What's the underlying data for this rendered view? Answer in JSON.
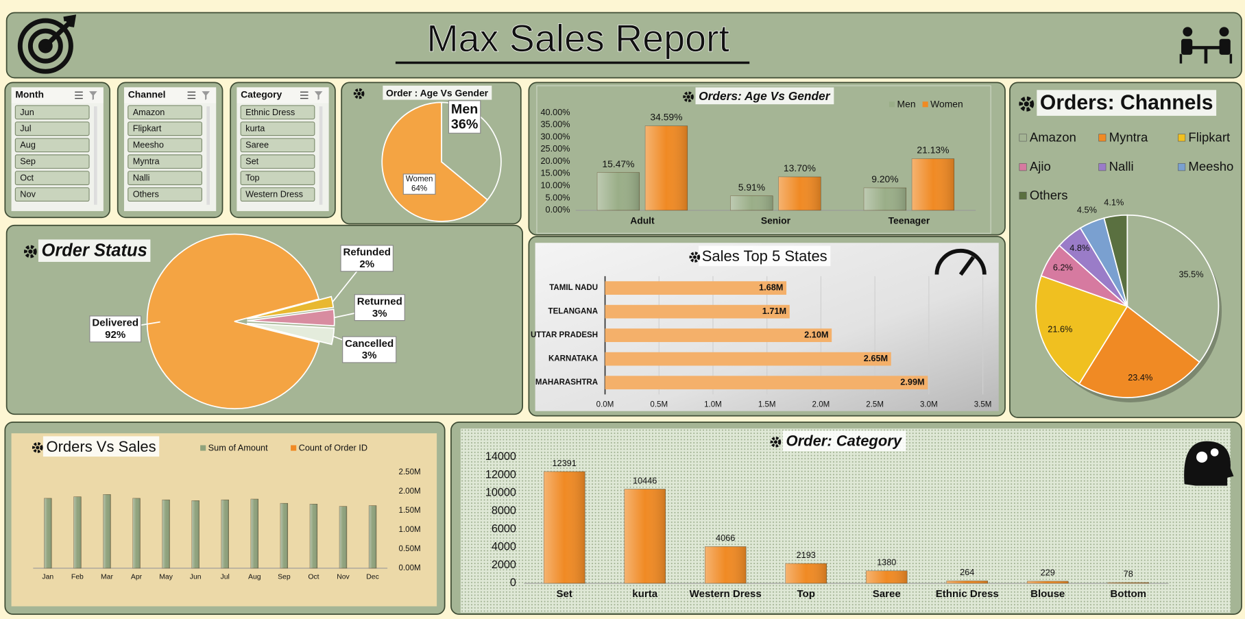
{
  "header": {
    "title": "Max Sales Report"
  },
  "slicers": [
    {
      "title": "Month",
      "items": [
        "Jun",
        "Jul",
        "Aug",
        "Sep",
        "Oct",
        "Nov"
      ]
    },
    {
      "title": "Channel",
      "items": [
        "Amazon",
        "Flipkart",
        "Meesho",
        "Myntra",
        "Nalli",
        "Others"
      ]
    },
    {
      "title": "Category",
      "items": [
        "Ethnic Dress",
        "kurta",
        "Saree",
        "Set",
        "Top",
        "Western Dress"
      ]
    }
  ],
  "chart_data": [
    {
      "type": "pie",
      "title": "Order : Age Vs Gender",
      "categories": [
        "Men",
        "Women"
      ],
      "values": [
        36,
        64
      ],
      "value_labels": [
        "36%",
        "64%"
      ],
      "colors": [
        "#a4b494",
        "#f4a443"
      ]
    },
    {
      "type": "bar",
      "title": "Orders: Age Vs Gender",
      "categories": [
        "Adult",
        "Senior",
        "Teenager"
      ],
      "series": [
        {
          "name": "Men",
          "color": "#9aae88",
          "values": [
            15.47,
            5.91,
            9.2
          ],
          "value_labels": [
            "15.47%",
            "5.91%",
            "9.20%"
          ]
        },
        {
          "name": "Women",
          "color": "#f08a24",
          "values": [
            34.59,
            13.7,
            21.13
          ],
          "value_labels": [
            "34.59%",
            "13.70%",
            "21.13%"
          ]
        }
      ],
      "ylim": [
        0,
        40
      ],
      "yticks": [
        {
          "value": 0,
          "label": "0.00%"
        },
        {
          "value": 5,
          "label": "5.00%"
        },
        {
          "value": 10,
          "label": "10.00%"
        },
        {
          "value": 15,
          "label": "15.00%"
        },
        {
          "value": 20,
          "label": "20.00%"
        },
        {
          "value": 25,
          "label": "25.00%"
        },
        {
          "value": 30,
          "label": "30.00%"
        },
        {
          "value": 35,
          "label": "35.00%"
        },
        {
          "value": 40,
          "label": "40.00%"
        }
      ],
      "grid": false
    },
    {
      "type": "pie",
      "title": "Order Status",
      "categories": [
        "Delivered",
        "Refunded",
        "Returned",
        "Cancelled"
      ],
      "values": [
        92,
        2,
        3,
        3
      ],
      "value_labels": [
        "92%",
        "2%",
        "3%",
        "3%"
      ],
      "colors": [
        "#f4a443",
        "#e8b830",
        "#d88ca0",
        "#e4ecdc"
      ]
    },
    {
      "type": "bar",
      "orientation": "horizontal",
      "title": "Sales Top 5 States",
      "categories": [
        "TAMIL NADU",
        "TELANGANA",
        "UTTAR PRADESH",
        "KARNATAKA",
        "MAHARASHTRA"
      ],
      "values": [
        1680000,
        1710000,
        2100000,
        2650000,
        2990000
      ],
      "value_labels": [
        "1.68M",
        "1.71M",
        "2.10M",
        "2.65M",
        "2.99M"
      ],
      "color": "#f4b06a",
      "xlim": [
        0,
        3500000
      ],
      "xticks": [
        {
          "value": 0,
          "label": "0.0M"
        },
        {
          "value": 500000,
          "label": "0.5M"
        },
        {
          "value": 1000000,
          "label": "1.0M"
        },
        {
          "value": 1500000,
          "label": "1.5M"
        },
        {
          "value": 2000000,
          "label": "2.0M"
        },
        {
          "value": 2500000,
          "label": "2.5M"
        },
        {
          "value": 3000000,
          "label": "3.0M"
        },
        {
          "value": 3500000,
          "label": "3.5M"
        }
      ],
      "grid": true
    },
    {
      "type": "pie",
      "title": "Orders: Channels",
      "categories": [
        "Amazon",
        "Myntra",
        "Flipkart",
        "Ajio",
        "Nalli",
        "Meesho",
        "Others"
      ],
      "values": [
        35.5,
        23.4,
        21.6,
        6.2,
        4.8,
        4.5,
        4.1
      ],
      "value_labels": [
        "35.5%",
        "23.4%",
        "21.6%",
        "6.2%",
        "4.8%",
        "4.5%",
        "4.1%"
      ],
      "colors": [
        "#a4b494",
        "#f08a24",
        "#f0c020",
        "#d67aa0",
        "#9a7cc8",
        "#7aa0d0",
        "#5a7040"
      ],
      "legend": "top"
    },
    {
      "type": "bar",
      "title": "Orders Vs Sales",
      "categories": [
        "Jan",
        "Feb",
        "Mar",
        "Apr",
        "May",
        "Jun",
        "Jul",
        "Aug",
        "Sep",
        "Oct",
        "Nov",
        "Dec"
      ],
      "series": [
        {
          "name": "Sum of Amount",
          "color": "#8fa27c",
          "values": [
            1820000,
            1860000,
            1920000,
            1820000,
            1780000,
            1760000,
            1780000,
            1800000,
            1690000,
            1670000,
            1610000,
            1630000
          ]
        },
        {
          "name": "Count of Order ID",
          "color": "#f08a24",
          "values": [
            null,
            null,
            null,
            null,
            null,
            null,
            null,
            null,
            null,
            null,
            null,
            null
          ]
        }
      ],
      "ylim": [
        0,
        2500000
      ],
      "yticks": [
        {
          "value": 0,
          "label": "0.00M"
        },
        {
          "value": 500000,
          "label": "0.50M"
        },
        {
          "value": 1000000,
          "label": "1.00M"
        },
        {
          "value": 1500000,
          "label": "1.50M"
        },
        {
          "value": 2000000,
          "label": "2.00M"
        },
        {
          "value": 2500000,
          "label": "2.50M"
        }
      ],
      "grid": false
    },
    {
      "type": "bar",
      "title": "Order: Category",
      "categories": [
        "Set",
        "kurta",
        "Western Dress",
        "Top",
        "Saree",
        "Ethnic Dress",
        "Blouse",
        "Bottom"
      ],
      "values": [
        12391,
        10446,
        4066,
        2193,
        1380,
        264,
        229,
        78
      ],
      "color": "#f08a24",
      "data_labels": true,
      "ylim": [
        0,
        14000
      ],
      "yticks": [
        0,
        2000,
        4000,
        6000,
        8000,
        10000,
        12000,
        14000
      ],
      "grid": false
    }
  ]
}
